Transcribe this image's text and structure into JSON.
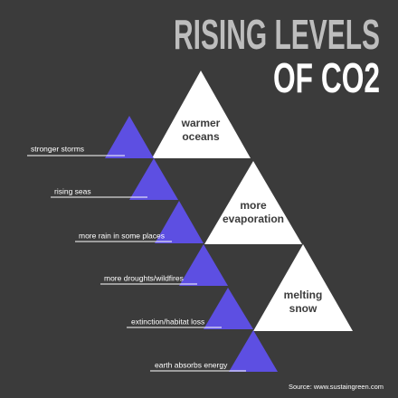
{
  "title": {
    "line1": "RISING LEVELS",
    "line2": "OF CO2"
  },
  "causes": [
    {
      "lines": [
        "warmer",
        "oceans"
      ]
    },
    {
      "lines": [
        "more",
        "evaporation"
      ]
    },
    {
      "lines": [
        "melting",
        "snow"
      ]
    }
  ],
  "effects": [
    "stronger storms",
    "rising seas",
    "more rain in some places",
    "more droughts/wildfires",
    "extinction/habitat loss",
    "earth absorbs energy"
  ],
  "source": "Source: www.sustaingreen.com"
}
